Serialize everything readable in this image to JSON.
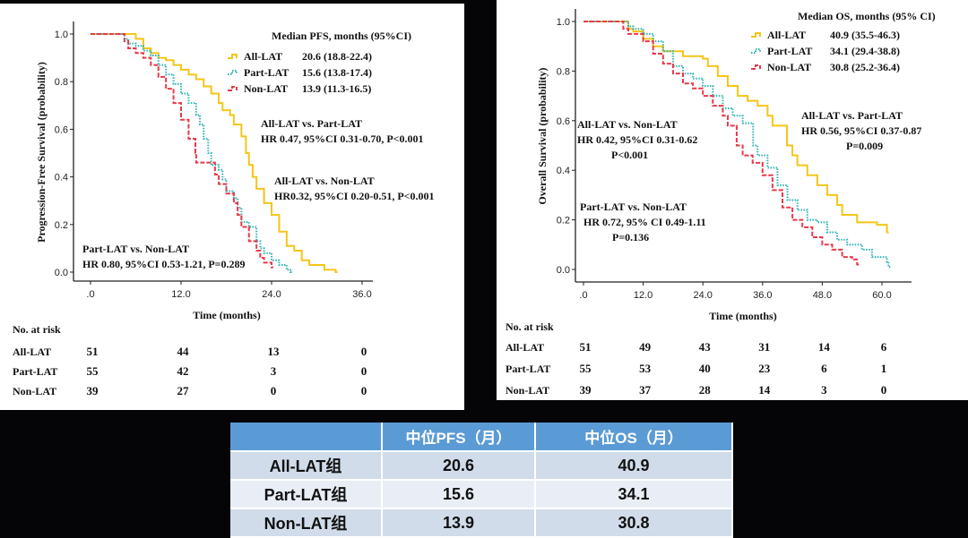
{
  "chart_data": [
    {
      "type": "line",
      "subtype": "kaplan-meier step",
      "title": "Median PFS, months (95%CI)",
      "xlabel": "Time (months)",
      "ylabel": "Progression-Free Survival (probability)",
      "xlim": [
        0,
        36
      ],
      "ylim": [
        0,
        1
      ],
      "x_ticks": [
        ".0",
        "12.0",
        "24.0",
        "36.0"
      ],
      "y_ticks": [
        "0.0",
        "0.2",
        "0.4",
        "0.6",
        "0.8",
        "1.0"
      ],
      "legend_position": "top-right",
      "legend": [
        {
          "name": "All-LAT",
          "median": "20.6 (18.8-22.4)",
          "color": "#f5c518",
          "style": "solid"
        },
        {
          "name": "Part-LAT",
          "median": "15.6 (13.8-17.4)",
          "color": "#2ab3b0",
          "style": "dotted"
        },
        {
          "name": "Non-LAT",
          "median": "13.9 (11.3-16.5)",
          "color": "#e8394a",
          "style": "dashed"
        }
      ],
      "series": [
        {
          "name": "All-LAT",
          "points": [
            [
              0,
              1.0
            ],
            [
              5,
              1.0
            ],
            [
              6,
              0.98
            ],
            [
              7,
              0.94
            ],
            [
              8,
              0.92
            ],
            [
              9,
              0.9
            ],
            [
              10,
              0.89
            ],
            [
              11,
              0.87
            ],
            [
              12,
              0.85
            ],
            [
              13,
              0.83
            ],
            [
              14,
              0.81
            ],
            [
              15,
              0.78
            ],
            [
              16,
              0.75
            ],
            [
              17,
              0.71
            ],
            [
              17.5,
              0.68
            ],
            [
              18.5,
              0.66
            ],
            [
              19,
              0.62
            ],
            [
              20,
              0.57
            ],
            [
              20.6,
              0.5
            ],
            [
              21,
              0.45
            ],
            [
              21.5,
              0.4
            ],
            [
              22,
              0.35
            ],
            [
              23,
              0.29
            ],
            [
              24,
              0.24
            ],
            [
              25,
              0.17
            ],
            [
              26,
              0.11
            ],
            [
              27,
              0.09
            ],
            [
              28,
              0.05
            ],
            [
              29,
              0.03
            ],
            [
              31,
              0.01
            ],
            [
              32.5,
              0.0
            ]
          ]
        },
        {
          "name": "Part-LAT",
          "points": [
            [
              0,
              1.0
            ],
            [
              4.5,
              0.98
            ],
            [
              5,
              0.96
            ],
            [
              6,
              0.95
            ],
            [
              7,
              0.93
            ],
            [
              8,
              0.91
            ],
            [
              9,
              0.87
            ],
            [
              10,
              0.83
            ],
            [
              11,
              0.79
            ],
            [
              12,
              0.75
            ],
            [
              13,
              0.71
            ],
            [
              14,
              0.66
            ],
            [
              14.5,
              0.62
            ],
            [
              15,
              0.56
            ],
            [
              15.6,
              0.5
            ],
            [
              16,
              0.45
            ],
            [
              17,
              0.43
            ],
            [
              17.5,
              0.39
            ],
            [
              18,
              0.34
            ],
            [
              19,
              0.31
            ],
            [
              19.5,
              0.27
            ],
            [
              20,
              0.21
            ],
            [
              21,
              0.19
            ],
            [
              22,
              0.13
            ],
            [
              22.5,
              0.1
            ],
            [
              23,
              0.08
            ],
            [
              24,
              0.05
            ],
            [
              25,
              0.03
            ],
            [
              26,
              0.01
            ],
            [
              26.5,
              0.0
            ]
          ]
        },
        {
          "name": "Non-LAT",
          "points": [
            [
              0,
              1.0
            ],
            [
              4.5,
              0.97
            ],
            [
              5,
              0.94
            ],
            [
              6,
              0.92
            ],
            [
              7,
              0.9
            ],
            [
              8,
              0.87
            ],
            [
              9,
              0.82
            ],
            [
              10,
              0.77
            ],
            [
              11,
              0.71
            ],
            [
              12,
              0.64
            ],
            [
              13,
              0.56
            ],
            [
              13.9,
              0.5
            ],
            [
              14,
              0.46
            ],
            [
              16,
              0.46
            ],
            [
              16.5,
              0.41
            ],
            [
              17,
              0.37
            ],
            [
              18,
              0.33
            ],
            [
              19,
              0.29
            ],
            [
              19.5,
              0.24
            ],
            [
              20,
              0.19
            ],
            [
              21,
              0.13
            ],
            [
              22,
              0.09
            ],
            [
              22.5,
              0.06
            ],
            [
              23,
              0.04
            ],
            [
              24,
              0.02
            ]
          ]
        }
      ],
      "annotations": [
        {
          "lines": [
            "All-LAT vs. Part-LAT",
            "HR 0.47, 95%CI 0.31-0.70, P<0.001"
          ]
        },
        {
          "lines": [
            "All-LAT vs. Non-LAT",
            "HR0.32, 95%CI 0.20-0.51, P<0.001"
          ]
        },
        {
          "lines": [
            "Part-LAT vs. Non-LAT",
            "HR 0.80, 95%CI 0.53-1.21, P=0.289"
          ]
        }
      ],
      "risk_table": {
        "title": "No. at risk",
        "rows": [
          {
            "group": "All-LAT",
            "values": [
              "51",
              "44",
              "13",
              "0"
            ]
          },
          {
            "group": "Part-LAT",
            "values": [
              "55",
              "42",
              "3",
              "0"
            ]
          },
          {
            "group": "Non-LAT",
            "values": [
              "39",
              "27",
              "0",
              "0"
            ]
          }
        ]
      }
    },
    {
      "type": "line",
      "subtype": "kaplan-meier step",
      "title": "Median OS, months (95% CI)",
      "xlabel": "Time (months)",
      "ylabel": "Overall Survival (probability)",
      "xlim": [
        0,
        60
      ],
      "ylim": [
        0,
        1
      ],
      "x_ticks": [
        ".0",
        "12.0",
        "24.0",
        "36.0",
        "48.0",
        "60.0"
      ],
      "y_ticks": [
        "0.0",
        "0.2",
        "0.4",
        "0.6",
        "0.8",
        "1.0"
      ],
      "legend_position": "top-right",
      "legend": [
        {
          "name": "All-LAT",
          "median": "40.9 (35.5-46.3)",
          "color": "#f5c518",
          "style": "solid"
        },
        {
          "name": "Part-LAT",
          "median": "34.1 (29.4-38.8)",
          "color": "#2ab3b0",
          "style": "dotted"
        },
        {
          "name": "Non-LAT",
          "median": "30.8 (25.2-36.4)",
          "color": "#e8394a",
          "style": "dashed"
        }
      ],
      "series": [
        {
          "name": "All-LAT",
          "points": [
            [
              0,
              1.0
            ],
            [
              8,
              1.0
            ],
            [
              9,
              0.97
            ],
            [
              10,
              0.96
            ],
            [
              12,
              0.93
            ],
            [
              14,
              0.9
            ],
            [
              16,
              0.88
            ],
            [
              18,
              0.88
            ],
            [
              20,
              0.86
            ],
            [
              24,
              0.85
            ],
            [
              25,
              0.82
            ],
            [
              27,
              0.78
            ],
            [
              29,
              0.74
            ],
            [
              31,
              0.7
            ],
            [
              33,
              0.68
            ],
            [
              35,
              0.66
            ],
            [
              37,
              0.62
            ],
            [
              38,
              0.58
            ],
            [
              40.9,
              0.5
            ],
            [
              42,
              0.46
            ],
            [
              43,
              0.42
            ],
            [
              45,
              0.38
            ],
            [
              47,
              0.34
            ],
            [
              49,
              0.3
            ],
            [
              51,
              0.26
            ],
            [
              52,
              0.22
            ],
            [
              55,
              0.19
            ],
            [
              59,
              0.18
            ],
            [
              61,
              0.15
            ]
          ]
        },
        {
          "name": "Part-LAT",
          "points": [
            [
              0,
              1.0
            ],
            [
              8,
              1.0
            ],
            [
              9,
              0.98
            ],
            [
              10,
              0.97
            ],
            [
              12,
              0.95
            ],
            [
              14,
              0.92
            ],
            [
              16,
              0.88
            ],
            [
              18,
              0.82
            ],
            [
              20,
              0.79
            ],
            [
              22,
              0.77
            ],
            [
              24,
              0.74
            ],
            [
              26,
              0.7
            ],
            [
              28,
              0.65
            ],
            [
              30,
              0.62
            ],
            [
              32,
              0.59
            ],
            [
              34.1,
              0.5
            ],
            [
              35,
              0.46
            ],
            [
              37,
              0.41
            ],
            [
              39,
              0.34
            ],
            [
              41,
              0.28
            ],
            [
              43,
              0.24
            ],
            [
              45,
              0.2
            ],
            [
              47,
              0.19
            ],
            [
              49,
              0.15
            ],
            [
              51,
              0.12
            ],
            [
              53,
              0.1
            ],
            [
              56,
              0.08
            ],
            [
              58,
              0.05
            ],
            [
              61,
              0.03
            ],
            [
              61.3,
              0.01
            ]
          ]
        },
        {
          "name": "Non-LAT",
          "points": [
            [
              0,
              1.0
            ],
            [
              8,
              0.97
            ],
            [
              9,
              0.95
            ],
            [
              12,
              0.92
            ],
            [
              14,
              0.87
            ],
            [
              16,
              0.83
            ],
            [
              18,
              0.79
            ],
            [
              20,
              0.75
            ],
            [
              22,
              0.73
            ],
            [
              24,
              0.7
            ],
            [
              26,
              0.66
            ],
            [
              28,
              0.62
            ],
            [
              29,
              0.58
            ],
            [
              30.8,
              0.5
            ],
            [
              32,
              0.46
            ],
            [
              34,
              0.43
            ],
            [
              36,
              0.38
            ],
            [
              38,
              0.32
            ],
            [
              40,
              0.25
            ],
            [
              42,
              0.2
            ],
            [
              44,
              0.17
            ],
            [
              46,
              0.13
            ],
            [
              48,
              0.1
            ],
            [
              50,
              0.08
            ],
            [
              52,
              0.05
            ],
            [
              54,
              0.04
            ],
            [
              55,
              0.02
            ]
          ]
        }
      ],
      "annotations": [
        {
          "lines": [
            "All-LAT vs. Non-LAT",
            "HR 0.42, 95%CI 0.31-0.62",
            "P<0.001"
          ]
        },
        {
          "lines": [
            "All-LAT vs. Part-LAT",
            "HR 0.56, 95%CI 0.37-0.87",
            "P=0.009"
          ]
        },
        {
          "lines": [
            "Part-LAT vs. Non-LAT",
            "HR 0.72, 95% CI 0.49-1.11",
            "P=0.136"
          ]
        }
      ],
      "risk_table": {
        "title": "No. at risk",
        "rows": [
          {
            "group": "All-LAT",
            "values": [
              "51",
              "49",
              "43",
              "31",
              "14",
              "6"
            ]
          },
          {
            "group": "Part-LAT",
            "values": [
              "55",
              "53",
              "40",
              "23",
              "6",
              "1"
            ]
          },
          {
            "group": "Non-LAT",
            "values": [
              "39",
              "37",
              "28",
              "14",
              "3",
              "0"
            ]
          }
        ]
      }
    },
    {
      "type": "table",
      "headers": [
        "",
        "中位PFS（月）",
        "中位OS（月）"
      ],
      "rows": [
        [
          "All-LAT组",
          "20.6",
          "40.9"
        ],
        [
          "Part-LAT组",
          "15.6",
          "34.1"
        ],
        [
          "Non-LAT组",
          "13.9",
          "30.8"
        ]
      ],
      "header_color": "#5b9bd5"
    }
  ]
}
